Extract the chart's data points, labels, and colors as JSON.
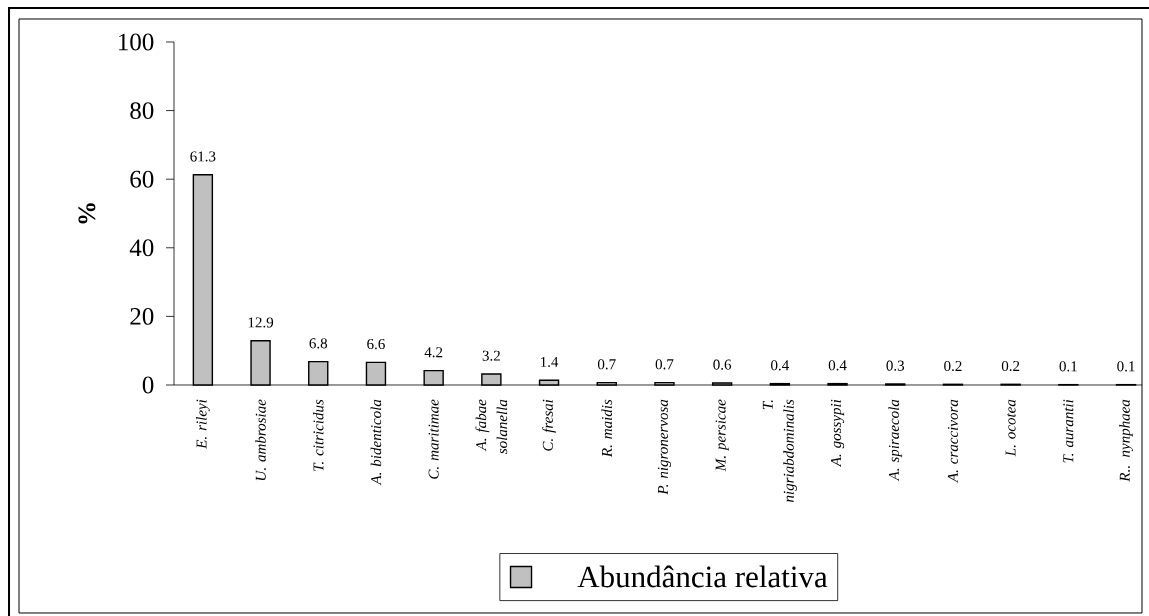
{
  "chart_data": {
    "type": "bar",
    "ylabel": "%",
    "categories": [
      "E. rileyi",
      "U. ambrosiae",
      "T. citricidus",
      "A. bidenticola",
      "C. maritimae",
      "A. fabae solanella",
      "C. fresai",
      "R. maidis",
      "P. nigronervosa",
      "M. persicae",
      "T. nigriabdominalis",
      "A. gossypii",
      "A. spiraecola",
      "A. craccivora",
      "L. ocotea",
      "T. aurantii",
      "R.. nynphaea"
    ],
    "series": [
      {
        "name": "Abundância relativa",
        "color": "#c0c0c0",
        "values": [
          61.3,
          12.9,
          6.8,
          6.6,
          4.2,
          3.2,
          1.4,
          0.7,
          0.7,
          0.6,
          0.4,
          0.4,
          0.3,
          0.2,
          0.2,
          0.1,
          0.1
        ]
      }
    ],
    "ylim": [
      0,
      100
    ],
    "yticks": [
      0,
      20,
      40,
      60,
      80,
      100
    ],
    "data_labels": true,
    "legend": "bottom"
  }
}
